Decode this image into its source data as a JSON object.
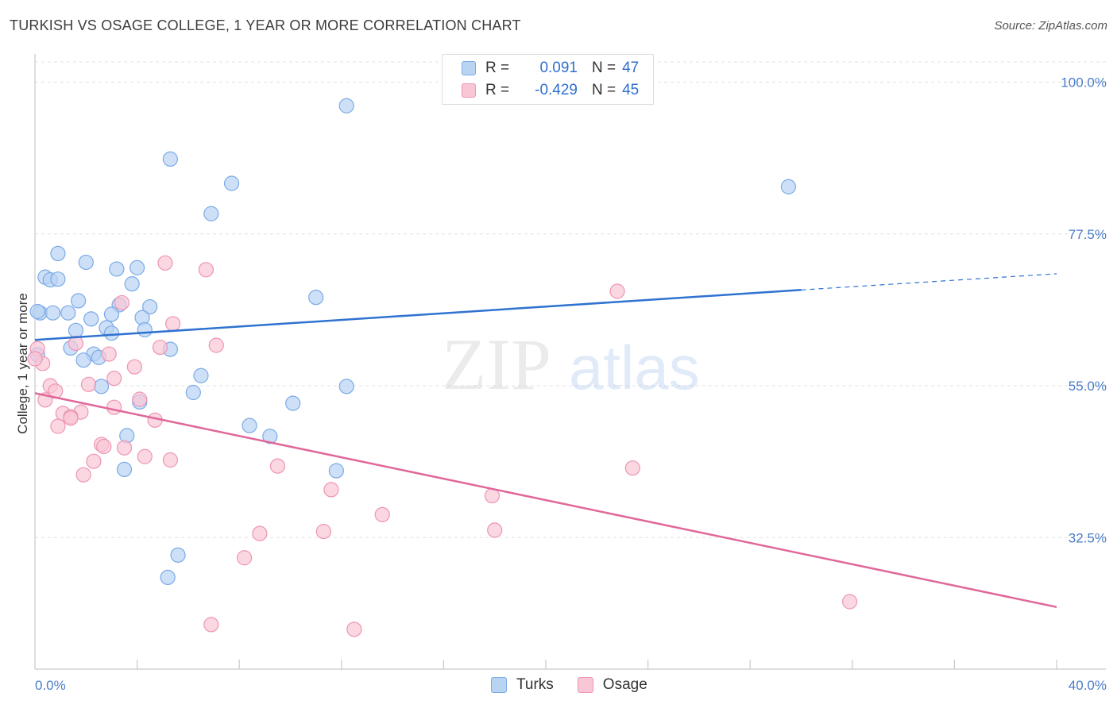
{
  "header": {
    "title": "TURKISH VS OSAGE COLLEGE, 1 YEAR OR MORE CORRELATION CHART",
    "source": "Source: ZipAtlas.com"
  },
  "legend": {
    "turks": {
      "r_label": "R =",
      "r_value": "0.091",
      "n_label": "N =",
      "n_value": "47"
    },
    "osage": {
      "r_label": "R =",
      "r_value": "-0.429",
      "n_label": "N =",
      "n_value": "45"
    }
  },
  "bottom_legend": {
    "turks": "Turks",
    "osage": "Osage"
  },
  "watermark": {
    "zip": "ZIP",
    "atlas": "atlas"
  },
  "colors": {
    "turks_fill": "#b9d3f3",
    "turks_stroke": "#7aaae6",
    "turks_line": "#2f72d0",
    "osage_fill": "#f9c6d6",
    "osage_stroke": "#ee95b1",
    "osage_line": "#e0679a",
    "grid": "#e0e0e0",
    "tick_text": "#4a7cc8"
  },
  "chart_data": {
    "type": "scatter",
    "title": "TURKISH VS OSAGE COLLEGE, 1 YEAR OR MORE CORRELATION CHART",
    "xlabel": "",
    "ylabel": "College, 1 year or more",
    "xlim": [
      0,
      40
    ],
    "ylim": [
      13,
      103
    ],
    "x_tick_labels": [
      "0.0%",
      "40.0%"
    ],
    "y_ticks": [
      32.5,
      55.0,
      77.5,
      100.0
    ],
    "y_tick_labels": [
      "32.5%",
      "55.0%",
      "77.5%",
      "100.0%"
    ],
    "series": [
      {
        "name": "Turks",
        "r": 0.091,
        "n": 47,
        "trend": {
          "x0": 0,
          "y0": 61.8,
          "x1": 30,
          "y1": 69.2,
          "dashed_to_x": 40,
          "dashed_to_y": 71.6
        },
        "points": [
          [
            12.2,
            96.5
          ],
          [
            5.3,
            88.6
          ],
          [
            7.7,
            85.0
          ],
          [
            6.9,
            80.5
          ],
          [
            29.5,
            84.5
          ],
          [
            0.9,
            74.6
          ],
          [
            2.0,
            73.3
          ],
          [
            3.2,
            72.3
          ],
          [
            4.0,
            72.5
          ],
          [
            0.4,
            71.1
          ],
          [
            0.6,
            70.7
          ],
          [
            0.9,
            70.8
          ],
          [
            3.8,
            70.1
          ],
          [
            11.0,
            68.1
          ],
          [
            1.7,
            67.6
          ],
          [
            3.3,
            67.0
          ],
          [
            4.5,
            66.7
          ],
          [
            0.2,
            65.8
          ],
          [
            0.7,
            65.8
          ],
          [
            1.3,
            65.8
          ],
          [
            3.0,
            65.6
          ],
          [
            2.2,
            64.9
          ],
          [
            4.2,
            65.1
          ],
          [
            2.8,
            63.6
          ],
          [
            4.3,
            63.3
          ],
          [
            1.6,
            63.2
          ],
          [
            3.0,
            62.8
          ],
          [
            1.4,
            60.6
          ],
          [
            5.3,
            60.4
          ],
          [
            2.3,
            59.7
          ],
          [
            1.9,
            58.8
          ],
          [
            2.5,
            59.2
          ],
          [
            6.5,
            56.5
          ],
          [
            12.2,
            54.9
          ],
          [
            2.6,
            54.9
          ],
          [
            6.2,
            54.0
          ],
          [
            4.1,
            52.6
          ],
          [
            10.1,
            52.4
          ],
          [
            8.4,
            49.1
          ],
          [
            9.2,
            47.5
          ],
          [
            3.6,
            47.6
          ],
          [
            3.5,
            42.6
          ],
          [
            11.8,
            42.4
          ],
          [
            5.6,
            29.9
          ],
          [
            5.2,
            26.6
          ],
          [
            0.1,
            59.6
          ],
          [
            0.1,
            66.0
          ]
        ]
      },
      {
        "name": "Osage",
        "r": -0.429,
        "n": 45,
        "trend": {
          "x0": 0,
          "y0": 53.9,
          "x1": 40,
          "y1": 22.2
        },
        "points": [
          [
            5.1,
            73.2
          ],
          [
            6.7,
            72.2
          ],
          [
            22.8,
            69.0
          ],
          [
            3.4,
            67.3
          ],
          [
            5.4,
            64.2
          ],
          [
            1.6,
            61.3
          ],
          [
            7.1,
            61.0
          ],
          [
            4.9,
            60.7
          ],
          [
            2.9,
            59.7
          ],
          [
            0.3,
            58.3
          ],
          [
            3.9,
            57.8
          ],
          [
            3.1,
            56.1
          ],
          [
            2.1,
            55.2
          ],
          [
            0.6,
            55.0
          ],
          [
            0.8,
            54.2
          ],
          [
            4.1,
            53.0
          ],
          [
            0.4,
            52.9
          ],
          [
            3.1,
            51.8
          ],
          [
            1.8,
            51.1
          ],
          [
            1.1,
            50.9
          ],
          [
            1.4,
            50.4
          ],
          [
            1.4,
            50.2
          ],
          [
            4.7,
            49.9
          ],
          [
            0.9,
            49.0
          ],
          [
            2.6,
            46.3
          ],
          [
            2.7,
            46.0
          ],
          [
            3.5,
            45.8
          ],
          [
            4.3,
            44.5
          ],
          [
            5.3,
            44.0
          ],
          [
            2.3,
            43.8
          ],
          [
            9.5,
            43.1
          ],
          [
            23.4,
            42.8
          ],
          [
            1.9,
            41.8
          ],
          [
            11.6,
            39.6
          ],
          [
            17.9,
            38.7
          ],
          [
            13.6,
            35.9
          ],
          [
            18.0,
            33.6
          ],
          [
            11.3,
            33.4
          ],
          [
            8.8,
            33.1
          ],
          [
            8.2,
            29.5
          ],
          [
            31.9,
            23.0
          ],
          [
            6.9,
            19.6
          ],
          [
            12.5,
            18.9
          ],
          [
            0.1,
            60.5
          ],
          [
            0.0,
            59.0
          ]
        ]
      }
    ]
  }
}
